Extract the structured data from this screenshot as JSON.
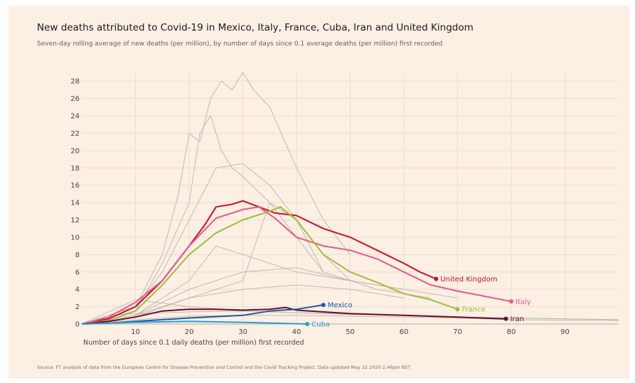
{
  "chart_data": {
    "type": "line",
    "title": "New deaths attributed to Covid-19 in Mexico, Italy, France, Cuba, Iran and United Kingdom",
    "subtitle": "Seven-day rolling average of new deaths (per million), by number of days since 0.1 average deaths (per million) first recorded",
    "xlabel": "Number of days since 0.1 daily deaths (per million) first recorded",
    "ylabel": "",
    "source": "Source: FT analysis of data from the European Centre for Disease Prevention and Control and the Covid Tracking Project. Data updated May 22 2020 2.46pm BST",
    "xlim": [
      0,
      100
    ],
    "ylim": [
      0,
      29
    ],
    "xticks": [
      10,
      20,
      30,
      40,
      50,
      60,
      70,
      80,
      90
    ],
    "yticks": [
      0,
      2,
      4,
      6,
      8,
      10,
      12,
      14,
      16,
      18,
      20,
      22,
      24,
      26,
      28
    ],
    "grid": true,
    "series": [
      {
        "name": "United Kingdom",
        "color": "#c8102e",
        "x": [
          0,
          5,
          10,
          15,
          20,
          23,
          25,
          28,
          30,
          33,
          36,
          40,
          45,
          50,
          55,
          60,
          63,
          66
        ],
        "y": [
          0,
          0.6,
          2,
          5,
          9,
          11.5,
          13.5,
          13.8,
          14.2,
          13.5,
          12.8,
          12.5,
          11,
          10,
          8.5,
          7,
          6,
          5.2
        ]
      },
      {
        "name": "Italy",
        "color": "#e8588a",
        "x": [
          0,
          5,
          10,
          15,
          20,
          25,
          30,
          33,
          36,
          40,
          45,
          50,
          55,
          60,
          65,
          70,
          75,
          80
        ],
        "y": [
          0,
          0.8,
          2.5,
          5,
          9,
          12.2,
          13.2,
          13.5,
          12.2,
          10,
          9,
          8.5,
          7.5,
          6,
          4.5,
          3.8,
          3.2,
          2.6
        ]
      },
      {
        "name": "France",
        "color": "#9dbf3d",
        "x": [
          0,
          5,
          10,
          15,
          20,
          25,
          30,
          35,
          37,
          40,
          45,
          50,
          55,
          60,
          65,
          70
        ],
        "y": [
          0,
          0.4,
          1.5,
          4.5,
          8,
          10.5,
          12,
          13,
          13.5,
          12,
          8,
          6,
          4.8,
          3.5,
          2.8,
          1.7
        ]
      },
      {
        "name": "Iran",
        "color": "#6b0a2e",
        "x": [
          0,
          5,
          10,
          15,
          20,
          25,
          30,
          35,
          38,
          40,
          50,
          60,
          70,
          79
        ],
        "y": [
          0,
          0.3,
          0.8,
          1.5,
          1.7,
          1.7,
          1.6,
          1.7,
          1.9,
          1.6,
          1.2,
          1.0,
          0.8,
          0.6
        ]
      },
      {
        "name": "Mexico",
        "color": "#1e5aa0",
        "x": [
          0,
          5,
          10,
          20,
          30,
          35,
          40,
          45
        ],
        "y": [
          0,
          0.1,
          0.3,
          0.7,
          1.0,
          1.5,
          1.7,
          2.2
        ]
      },
      {
        "name": "Cuba",
        "color": "#2a9fd8",
        "x": [
          0,
          5,
          10,
          20,
          30,
          42
        ],
        "y": [
          0,
          0.1,
          0.2,
          0.3,
          0.2,
          0.0
        ]
      }
    ],
    "background_series": [
      {
        "x": [
          0,
          10,
          15,
          18,
          20,
          22,
          24,
          26,
          28,
          30,
          32,
          35,
          40,
          45,
          50
        ],
        "y": [
          0,
          2,
          8,
          15,
          22,
          21,
          26,
          28,
          27,
          29,
          27,
          25,
          18,
          12,
          8
        ]
      },
      {
        "x": [
          0,
          10,
          15,
          20,
          22,
          24,
          26,
          28,
          30,
          35,
          40,
          45
        ],
        "y": [
          0,
          1.5,
          7,
          14,
          22,
          24,
          20,
          18,
          17,
          14,
          10,
          6
        ]
      },
      {
        "x": [
          0,
          10,
          15,
          20,
          25,
          30,
          35,
          40,
          45,
          50
        ],
        "y": [
          0,
          2,
          6,
          12,
          18,
          18.5,
          16,
          12,
          8,
          5
        ]
      },
      {
        "x": [
          0,
          10,
          20,
          25,
          30,
          35,
          40,
          50,
          60
        ],
        "y": [
          0,
          1,
          5,
          9,
          8,
          7,
          6,
          5,
          4
        ]
      },
      {
        "x": [
          0,
          10,
          20,
          30,
          40,
          50,
          60,
          70
        ],
        "y": [
          0,
          1,
          4,
          6,
          6.5,
          5,
          4,
          3
        ]
      },
      {
        "x": [
          0,
          10,
          20,
          30,
          40,
          50,
          60
        ],
        "y": [
          0,
          0.8,
          3,
          4,
          4.5,
          4,
          3
        ]
      },
      {
        "x": [
          0,
          10,
          20,
          30,
          35,
          40,
          45,
          55,
          65
        ],
        "y": [
          0,
          1,
          3,
          5,
          14,
          12,
          6,
          4,
          3
        ]
      },
      {
        "x": [
          0,
          5,
          10,
          20,
          30,
          40,
          50,
          60,
          70,
          80,
          100
        ],
        "y": [
          0,
          1,
          1.2,
          1.4,
          1.5,
          1.3,
          1.1,
          1,
          0.8,
          0.7,
          0.5
        ]
      },
      {
        "x": [
          0,
          10,
          20,
          30,
          40,
          50,
          60,
          70,
          80,
          100
        ],
        "y": [
          0,
          0.5,
          0.9,
          1,
          1,
          0.9,
          0.8,
          0.7,
          0.5,
          0.4
        ]
      },
      {
        "x": [
          0,
          10,
          20,
          30,
          40,
          50,
          60,
          70,
          100
        ],
        "y": [
          0,
          2.8,
          2,
          1.5,
          1.3,
          1.2,
          1,
          0.8,
          0.5
        ]
      }
    ]
  }
}
